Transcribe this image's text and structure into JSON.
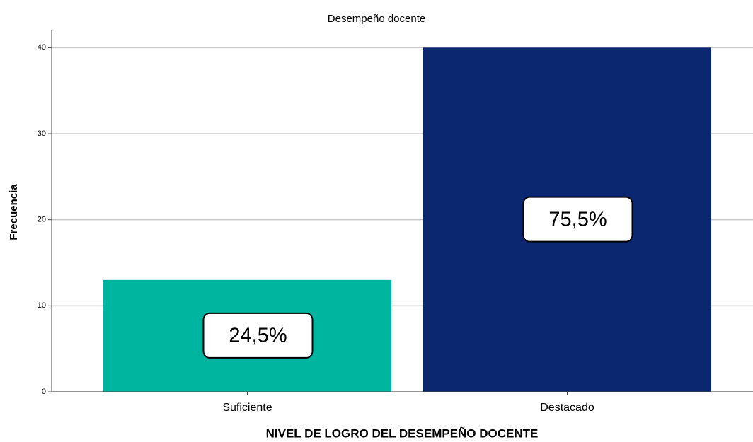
{
  "chart_data": {
    "type": "bar",
    "title": "Desempeño docente",
    "x_label": "NIVEL DE LOGRO DEL DESEMPEÑO DOCENTE",
    "y_label": "Frecuencia",
    "categories": [
      "Suficiente",
      "Destacado"
    ],
    "values": [
      13,
      40
    ],
    "colors": [
      "#00b5a0",
      "#0b2770"
    ],
    "percentages": [
      24.5,
      75.5
    ],
    "percentage_labels": [
      "24,5%",
      "75,5%"
    ],
    "ylim": [
      0,
      42
    ],
    "yticks": [
      0,
      10,
      20,
      30,
      40
    ],
    "grid": true
  }
}
